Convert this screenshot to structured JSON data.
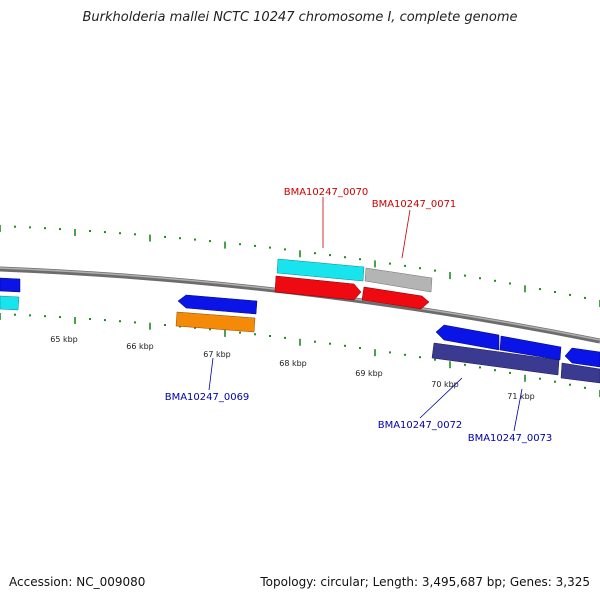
{
  "title": "Burkholderia mallei NCTC 10247 chromosome I, complete genome",
  "footer": {
    "accession": "Accession: NC_009080",
    "summary": "Topology: circular; Length: 3,495,687 bp; Genes: 3,325"
  },
  "colors": {
    "backbone": "#8a8a8a",
    "ticks": "#1f8a1f",
    "cds_blue": "#0a14e6",
    "cds_navy": "#3a3a90",
    "cds_cyan": "#18e4ee",
    "cds_red": "#ee0a10",
    "cds_orange": "#f58a08",
    "cds_grey": "#b4b4b4",
    "label_red": "#cc0000",
    "label_blue": "#0000aa"
  },
  "ruler_labels": [
    "65 kbp",
    "66 kbp",
    "67 kbp",
    "68 kbp",
    "69 kbp",
    "70 kbp",
    "71 kbp"
  ],
  "gene_labels": {
    "g69": "BMA10247_0069",
    "g70": "BMA10247_0070",
    "g71": "BMA10247_0071",
    "g72": "BMA10247_0072",
    "g73": "BMA10247_0073"
  }
}
